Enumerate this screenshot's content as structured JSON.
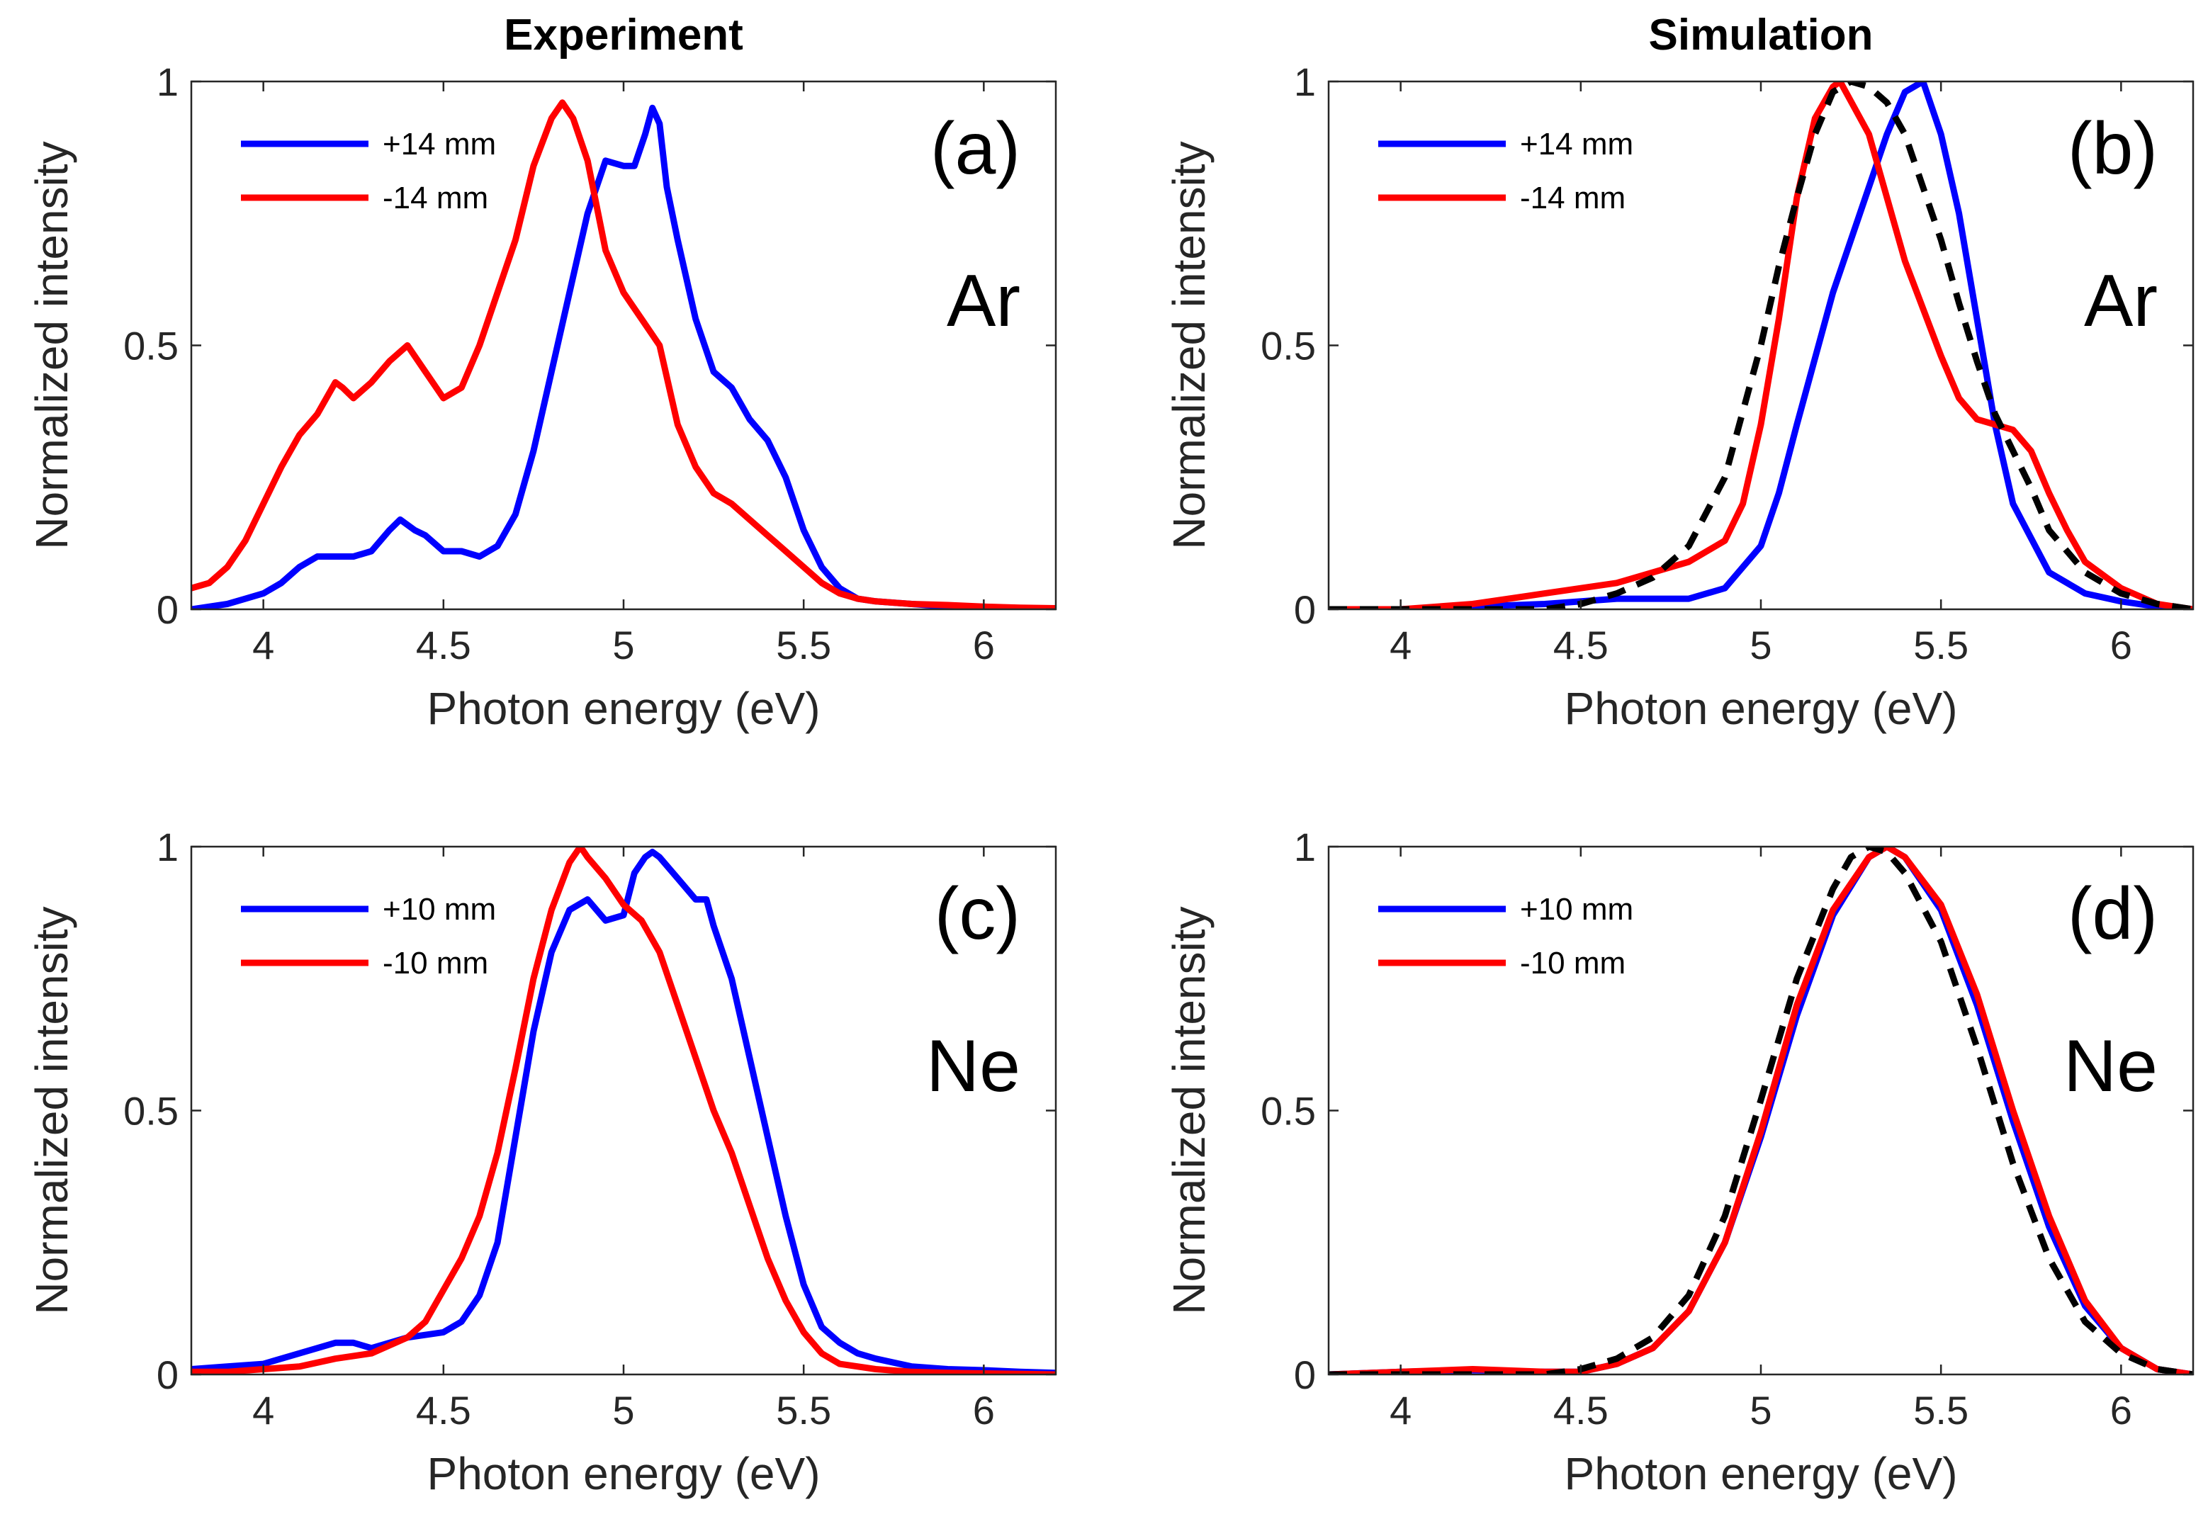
{
  "figure": {
    "column_titles": [
      "Experiment",
      "Simulation"
    ]
  },
  "chart_data": [
    {
      "type": "line",
      "panel_label": "(a)",
      "gas": "Ar",
      "column": "Experiment",
      "xlabel": "Photon energy (eV)",
      "ylabel": "Normalized intensity",
      "xlim": [
        3.8,
        6.2
      ],
      "ylim": [
        0,
        1
      ],
      "xticks": [
        4,
        4.5,
        5,
        5.5,
        6
      ],
      "xtick_labels": [
        "4",
        "4.5",
        "5",
        "5.5",
        "6"
      ],
      "yticks": [
        0,
        0.5,
        1
      ],
      "ytick_labels": [
        "0",
        "0.5",
        "1"
      ],
      "legend_position": "top-left",
      "series": [
        {
          "name": "+14 mm",
          "color": "#0000ff",
          "dashed": false,
          "x": [
            3.8,
            3.9,
            3.95,
            4.0,
            4.05,
            4.1,
            4.15,
            4.2,
            4.25,
            4.3,
            4.35,
            4.38,
            4.42,
            4.45,
            4.5,
            4.55,
            4.6,
            4.65,
            4.7,
            4.75,
            4.8,
            4.85,
            4.9,
            4.95,
            5.0,
            5.03,
            5.06,
            5.08,
            5.1,
            5.12,
            5.15,
            5.2,
            5.25,
            5.3,
            5.35,
            5.4,
            5.45,
            5.5,
            5.55,
            5.6,
            5.65,
            5.7,
            5.8,
            5.9,
            6.0,
            6.1,
            6.2
          ],
          "y": [
            0.0,
            0.01,
            0.02,
            0.03,
            0.05,
            0.08,
            0.1,
            0.1,
            0.1,
            0.11,
            0.15,
            0.17,
            0.15,
            0.14,
            0.11,
            0.11,
            0.1,
            0.12,
            0.18,
            0.3,
            0.45,
            0.6,
            0.75,
            0.85,
            0.84,
            0.84,
            0.9,
            0.95,
            0.92,
            0.8,
            0.7,
            0.55,
            0.45,
            0.42,
            0.36,
            0.32,
            0.25,
            0.15,
            0.08,
            0.04,
            0.02,
            0.015,
            0.01,
            0.005,
            0.003,
            0.002,
            0.0
          ]
        },
        {
          "name": "-14 mm",
          "color": "#ff0000",
          "dashed": false,
          "x": [
            3.8,
            3.85,
            3.9,
            3.95,
            4.0,
            4.05,
            4.1,
            4.15,
            4.2,
            4.22,
            4.25,
            4.3,
            4.35,
            4.4,
            4.45,
            4.5,
            4.55,
            4.6,
            4.65,
            4.7,
            4.75,
            4.8,
            4.83,
            4.86,
            4.9,
            4.95,
            5.0,
            5.05,
            5.1,
            5.15,
            5.2,
            5.25,
            5.3,
            5.35,
            5.4,
            5.45,
            5.5,
            5.55,
            5.6,
            5.65,
            5.7,
            5.8,
            5.9,
            6.0,
            6.1,
            6.2
          ],
          "y": [
            0.04,
            0.05,
            0.08,
            0.13,
            0.2,
            0.27,
            0.33,
            0.37,
            0.43,
            0.42,
            0.4,
            0.43,
            0.47,
            0.5,
            0.45,
            0.4,
            0.42,
            0.5,
            0.6,
            0.7,
            0.84,
            0.93,
            0.96,
            0.93,
            0.85,
            0.68,
            0.6,
            0.55,
            0.5,
            0.35,
            0.27,
            0.22,
            0.2,
            0.17,
            0.14,
            0.11,
            0.08,
            0.05,
            0.03,
            0.02,
            0.015,
            0.01,
            0.008,
            0.005,
            0.003,
            0.002
          ]
        }
      ]
    },
    {
      "type": "line",
      "panel_label": "(b)",
      "gas": "Ar",
      "column": "Simulation",
      "xlabel": "Photon energy (eV)",
      "ylabel": "Normalized intensity",
      "xlim": [
        3.8,
        6.2
      ],
      "ylim": [
        0,
        1
      ],
      "xticks": [
        4,
        4.5,
        5,
        5.5,
        6
      ],
      "xtick_labels": [
        "4",
        "4.5",
        "5",
        "5.5",
        "6"
      ],
      "yticks": [
        0,
        0.5,
        1
      ],
      "ytick_labels": [
        "0",
        "0.5",
        "1"
      ],
      "legend_position": "top-left",
      "series": [
        {
          "name": "+14 mm",
          "color": "#0000ff",
          "dashed": false,
          "x": [
            3.8,
            4.0,
            4.2,
            4.4,
            4.6,
            4.8,
            4.9,
            5.0,
            5.05,
            5.1,
            5.2,
            5.3,
            5.35,
            5.4,
            5.45,
            5.5,
            5.55,
            5.6,
            5.65,
            5.7,
            5.8,
            5.9,
            6.0,
            6.1,
            6.2
          ],
          "y": [
            0.0,
            0.0,
            0.005,
            0.01,
            0.02,
            0.02,
            0.04,
            0.12,
            0.22,
            0.35,
            0.6,
            0.8,
            0.9,
            0.98,
            1.0,
            0.9,
            0.75,
            0.55,
            0.35,
            0.2,
            0.07,
            0.03,
            0.015,
            0.005,
            0.0
          ]
        },
        {
          "name": "-14 mm",
          "color": "#ff0000",
          "dashed": false,
          "x": [
            3.8,
            4.0,
            4.2,
            4.4,
            4.6,
            4.7,
            4.8,
            4.9,
            4.95,
            5.0,
            5.05,
            5.1,
            5.15,
            5.2,
            5.22,
            5.3,
            5.35,
            5.4,
            5.5,
            5.55,
            5.6,
            5.7,
            5.75,
            5.8,
            5.85,
            5.9,
            6.0,
            6.1,
            6.2
          ],
          "y": [
            0.0,
            0.0,
            0.01,
            0.03,
            0.05,
            0.07,
            0.09,
            0.13,
            0.2,
            0.35,
            0.55,
            0.78,
            0.93,
            0.99,
            1.0,
            0.9,
            0.78,
            0.66,
            0.48,
            0.4,
            0.36,
            0.34,
            0.3,
            0.22,
            0.15,
            0.09,
            0.04,
            0.01,
            0.0
          ]
        },
        {
          "name": "",
          "color": "#000000",
          "dashed": true,
          "x": [
            3.8,
            4.0,
            4.2,
            4.4,
            4.5,
            4.6,
            4.7,
            4.8,
            4.9,
            5.0,
            5.05,
            5.1,
            5.15,
            5.2,
            5.25,
            5.3,
            5.35,
            5.4,
            5.5,
            5.55,
            5.6,
            5.65,
            5.7,
            5.75,
            5.8,
            5.9,
            6.0,
            6.1,
            6.2
          ],
          "y": [
            0.0,
            0.0,
            0.0,
            0.0,
            0.01,
            0.03,
            0.06,
            0.12,
            0.25,
            0.5,
            0.65,
            0.78,
            0.9,
            0.98,
            1.0,
            0.99,
            0.96,
            0.9,
            0.7,
            0.58,
            0.47,
            0.37,
            0.3,
            0.23,
            0.15,
            0.07,
            0.03,
            0.01,
            0.0
          ]
        }
      ]
    },
    {
      "type": "line",
      "panel_label": "(c)",
      "gas": "Ne",
      "column": "Experiment",
      "xlabel": "Photon energy (eV)",
      "ylabel": "Normalized intensity",
      "xlim": [
        3.8,
        6.2
      ],
      "ylim": [
        0,
        1
      ],
      "xticks": [
        4,
        4.5,
        5,
        5.5,
        6
      ],
      "xtick_labels": [
        "4",
        "4.5",
        "5",
        "5.5",
        "6"
      ],
      "yticks": [
        0,
        0.5,
        1
      ],
      "ytick_labels": [
        "0",
        "0.5",
        "1"
      ],
      "legend_position": "top-left",
      "series": [
        {
          "name": "+10 mm",
          "color": "#0000ff",
          "dashed": false,
          "x": [
            3.8,
            3.9,
            4.0,
            4.1,
            4.2,
            4.25,
            4.3,
            4.35,
            4.4,
            4.5,
            4.55,
            4.6,
            4.65,
            4.7,
            4.75,
            4.8,
            4.85,
            4.9,
            4.95,
            5.0,
            5.03,
            5.06,
            5.08,
            5.1,
            5.15,
            5.2,
            5.23,
            5.25,
            5.3,
            5.35,
            5.4,
            5.45,
            5.5,
            5.55,
            5.6,
            5.65,
            5.7,
            5.8,
            5.9,
            6.0,
            6.1,
            6.2
          ],
          "y": [
            0.01,
            0.015,
            0.02,
            0.04,
            0.06,
            0.06,
            0.05,
            0.06,
            0.07,
            0.08,
            0.1,
            0.15,
            0.25,
            0.45,
            0.65,
            0.8,
            0.88,
            0.9,
            0.86,
            0.87,
            0.95,
            0.98,
            0.99,
            0.98,
            0.94,
            0.9,
            0.9,
            0.85,
            0.75,
            0.6,
            0.45,
            0.3,
            0.17,
            0.09,
            0.06,
            0.04,
            0.03,
            0.015,
            0.01,
            0.008,
            0.005,
            0.003
          ]
        },
        {
          "name": "-10 mm",
          "color": "#ff0000",
          "dashed": false,
          "x": [
            3.8,
            3.9,
            4.0,
            4.1,
            4.2,
            4.3,
            4.4,
            4.45,
            4.5,
            4.55,
            4.6,
            4.65,
            4.7,
            4.75,
            4.8,
            4.85,
            4.88,
            4.9,
            4.95,
            5.0,
            5.05,
            5.1,
            5.15,
            5.2,
            5.25,
            5.3,
            5.35,
            5.4,
            5.45,
            5.5,
            5.55,
            5.6,
            5.7,
            5.8,
            5.9,
            6.0,
            6.1,
            6.2
          ],
          "y": [
            0.005,
            0.005,
            0.01,
            0.015,
            0.03,
            0.04,
            0.07,
            0.1,
            0.16,
            0.22,
            0.3,
            0.42,
            0.58,
            0.75,
            0.88,
            0.97,
            1.0,
            0.98,
            0.94,
            0.89,
            0.86,
            0.8,
            0.7,
            0.6,
            0.5,
            0.42,
            0.32,
            0.22,
            0.14,
            0.08,
            0.04,
            0.02,
            0.01,
            0.005,
            0.003,
            0.002,
            0.001,
            0.0
          ]
        }
      ]
    },
    {
      "type": "line",
      "panel_label": "(d)",
      "gas": "Ne",
      "column": "Simulation",
      "xlabel": "Photon energy (eV)",
      "ylabel": "Normalized intensity",
      "xlim": [
        3.8,
        6.2
      ],
      "ylim": [
        0,
        1
      ],
      "xticks": [
        4,
        4.5,
        5,
        5.5,
        6
      ],
      "xtick_labels": [
        "4",
        "4.5",
        "5",
        "5.5",
        "6"
      ],
      "yticks": [
        0,
        0.5,
        1
      ],
      "ytick_labels": [
        "0",
        "0.5",
        "1"
      ],
      "legend_position": "top-left",
      "series": [
        {
          "name": "+10 mm",
          "color": "#0000ff",
          "dashed": false,
          "x": [
            3.8,
            4.0,
            4.2,
            4.4,
            4.5,
            4.6,
            4.7,
            4.8,
            4.9,
            5.0,
            5.1,
            5.2,
            5.3,
            5.35,
            5.4,
            5.5,
            5.6,
            5.7,
            5.8,
            5.9,
            6.0,
            6.1,
            6.2
          ],
          "y": [
            0.0,
            0.005,
            0.008,
            0.005,
            0.005,
            0.02,
            0.05,
            0.12,
            0.25,
            0.45,
            0.68,
            0.87,
            0.98,
            1.0,
            0.98,
            0.88,
            0.7,
            0.48,
            0.28,
            0.13,
            0.05,
            0.01,
            0.0
          ]
        },
        {
          "name": "-10 mm",
          "color": "#ff0000",
          "dashed": false,
          "x": [
            3.8,
            4.0,
            4.2,
            4.4,
            4.5,
            4.6,
            4.7,
            4.8,
            4.9,
            5.0,
            5.1,
            5.2,
            5.3,
            5.35,
            5.4,
            5.5,
            5.6,
            5.7,
            5.8,
            5.9,
            6.0,
            6.1,
            6.2
          ],
          "y": [
            0.0,
            0.005,
            0.01,
            0.005,
            0.005,
            0.02,
            0.05,
            0.12,
            0.25,
            0.46,
            0.7,
            0.88,
            0.98,
            1.0,
            0.98,
            0.89,
            0.72,
            0.5,
            0.3,
            0.14,
            0.05,
            0.01,
            0.0
          ]
        },
        {
          "name": "",
          "color": "#000000",
          "dashed": true,
          "x": [
            3.8,
            4.0,
            4.2,
            4.4,
            4.5,
            4.6,
            4.7,
            4.8,
            4.9,
            5.0,
            5.1,
            5.2,
            5.25,
            5.3,
            5.35,
            5.4,
            5.5,
            5.6,
            5.7,
            5.8,
            5.9,
            6.0,
            6.1,
            6.2
          ],
          "y": [
            0.0,
            0.0,
            0.0,
            0.0,
            0.01,
            0.03,
            0.07,
            0.15,
            0.3,
            0.52,
            0.75,
            0.92,
            0.98,
            1.0,
            0.99,
            0.95,
            0.82,
            0.62,
            0.4,
            0.22,
            0.1,
            0.04,
            0.01,
            0.0
          ]
        }
      ]
    }
  ]
}
